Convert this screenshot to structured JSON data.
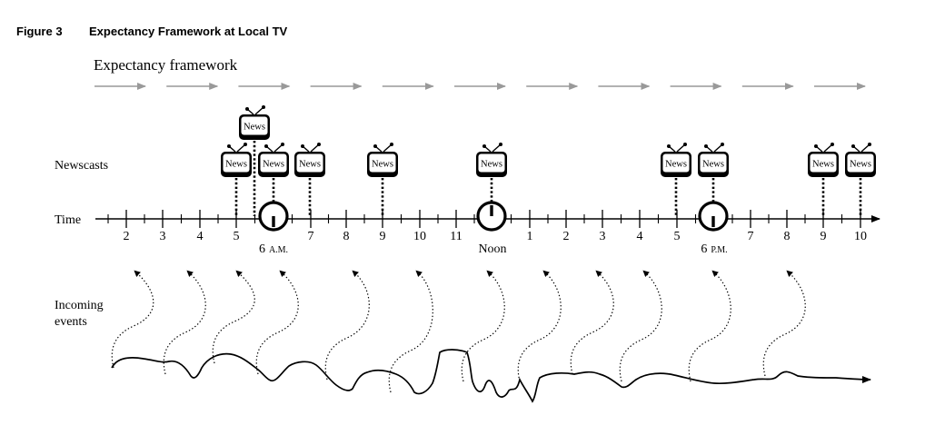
{
  "figure": {
    "number_label": "Figure 3",
    "title": "Expectancy Framework at Local TV"
  },
  "labels": {
    "framework": "Expectancy framework",
    "newscasts": "Newscasts",
    "time": "Time",
    "incoming_line1": "Incoming",
    "incoming_line2": "events"
  },
  "time_axis": {
    "hour_labels": [
      {
        "text": "2"
      },
      {
        "text": "3"
      },
      {
        "text": "4"
      },
      {
        "text": "5"
      },
      {
        "text": "6",
        "suffix": "A.M."
      },
      {
        "text": "7"
      },
      {
        "text": "8"
      },
      {
        "text": "9"
      },
      {
        "text": "10"
      },
      {
        "text": "11"
      },
      {
        "text": "Noon"
      },
      {
        "text": "1"
      },
      {
        "text": "2"
      },
      {
        "text": "3"
      },
      {
        "text": "4"
      },
      {
        "text": "5"
      },
      {
        "text": "6",
        "suffix": "P.M."
      },
      {
        "text": "7"
      },
      {
        "text": "8"
      },
      {
        "text": "9"
      },
      {
        "text": "10"
      }
    ],
    "clock_hours": [
      "6 A.M.",
      "Noon",
      "6 P.M."
    ]
  },
  "newscasts": {
    "tv_label": "News",
    "broadcast_times": [
      "5",
      "5:30",
      "6 A.M.",
      "7",
      "9",
      "Noon",
      "5",
      "6 P.M.",
      "9",
      "10"
    ]
  },
  "expectancy_arrow_count": 11,
  "incoming_event_arrow_count": 15
}
